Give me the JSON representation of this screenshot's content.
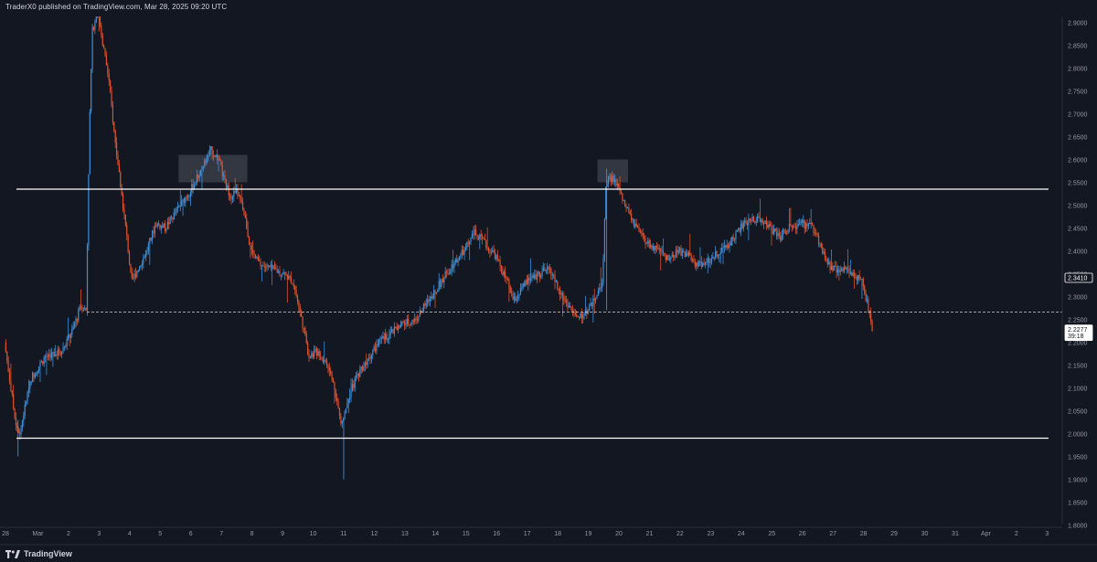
{
  "header": {
    "publish_line": "TraderX0 published on TradingView.com, Mar 28, 2025 09:20 UTC"
  },
  "footer": {
    "brand": "TradingView",
    "brand_icon": "tradingview-logo-icon"
  },
  "colors": {
    "background": "#131722",
    "bull": "#3d8fd6",
    "bear": "#e0522e",
    "axis_text": "#9598a1",
    "level_line": "#ffffff",
    "zone_fill": "#3a3d48",
    "price_label_bg": "#ffffff",
    "price_label_text": "#131722"
  },
  "chart_data": {
    "type": "candlestick",
    "title": "",
    "xlabel": "",
    "ylabel": "",
    "ylim": [
      1.8,
      2.92
    ],
    "grid": false,
    "y_ticks": [
      "2.9000",
      "2.8500",
      "2.8000",
      "2.7500",
      "2.7000",
      "2.6500",
      "2.6000",
      "2.5500",
      "2.5000",
      "2.4500",
      "2.4000",
      "2.3500",
      "2.3000",
      "2.2500",
      "2.2000",
      "2.1500",
      "2.1000",
      "2.0500",
      "2.0000",
      "1.9500",
      "1.9000",
      "1.8500",
      "1.8000"
    ],
    "x_ticks": [
      {
        "label": "28",
        "day": -0.06
      },
      {
        "label": "Mar",
        "day": 1
      },
      {
        "label": "2",
        "day": 2
      },
      {
        "label": "3",
        "day": 3
      },
      {
        "label": "4",
        "day": 4
      },
      {
        "label": "5",
        "day": 5
      },
      {
        "label": "6",
        "day": 6
      },
      {
        "label": "7",
        "day": 7
      },
      {
        "label": "8",
        "day": 8
      },
      {
        "label": "9",
        "day": 9
      },
      {
        "label": "10",
        "day": 10
      },
      {
        "label": "11",
        "day": 11
      },
      {
        "label": "12",
        "day": 12
      },
      {
        "label": "13",
        "day": 13
      },
      {
        "label": "14",
        "day": 14
      },
      {
        "label": "15",
        "day": 15
      },
      {
        "label": "16",
        "day": 16
      },
      {
        "label": "17",
        "day": 17
      },
      {
        "label": "18",
        "day": 18
      },
      {
        "label": "19",
        "day": 19
      },
      {
        "label": "20",
        "day": 20
      },
      {
        "label": "21",
        "day": 21
      },
      {
        "label": "22",
        "day": 22
      },
      {
        "label": "23",
        "day": 23
      },
      {
        "label": "24",
        "day": 24
      },
      {
        "label": "25",
        "day": 25
      },
      {
        "label": "26",
        "day": 26
      },
      {
        "label": "27",
        "day": 27
      },
      {
        "label": "28",
        "day": 28
      },
      {
        "label": "29",
        "day": 29
      },
      {
        "label": "30",
        "day": 30
      },
      {
        "label": "31",
        "day": 31
      },
      {
        "label": "Apr",
        "day": 32
      },
      {
        "label": "2",
        "day": 33
      },
      {
        "label": "3",
        "day": 34
      }
    ],
    "horizontal_levels": [
      {
        "price": 2.535,
        "style": "solid"
      },
      {
        "price": 1.99,
        "style": "solid"
      },
      {
        "price": 2.266,
        "style": "dashed"
      }
    ],
    "zones": [
      {
        "day_start": 5.6,
        "day_end": 7.85,
        "price_low": 2.55,
        "price_high": 2.61
      },
      {
        "day_start": 19.3,
        "day_end": 20.3,
        "price_low": 2.55,
        "price_high": 2.6
      }
    ],
    "price_labels": [
      {
        "price": 2.341,
        "text": "2.3410",
        "style": "outline"
      },
      {
        "price": 2.2277,
        "text": "2.2277",
        "subtext": "39:18",
        "style": "filled"
      }
    ],
    "anchors": [
      [
        -0.05,
        2.2
      ],
      [
        0.3,
        2.03
      ],
      [
        0.45,
        2.0
      ],
      [
        0.8,
        2.12
      ],
      [
        1.3,
        2.17
      ],
      [
        1.8,
        2.18
      ],
      [
        2.2,
        2.23
      ],
      [
        2.45,
        2.28
      ],
      [
        2.62,
        2.27
      ],
      [
        2.72,
        2.65
      ],
      [
        2.82,
        2.88
      ],
      [
        3.0,
        2.93
      ],
      [
        3.15,
        2.86
      ],
      [
        3.35,
        2.78
      ],
      [
        3.55,
        2.65
      ],
      [
        3.75,
        2.54
      ],
      [
        3.95,
        2.43
      ],
      [
        4.1,
        2.33
      ],
      [
        4.3,
        2.36
      ],
      [
        4.6,
        2.4
      ],
      [
        4.9,
        2.46
      ],
      [
        5.2,
        2.45
      ],
      [
        5.5,
        2.48
      ],
      [
        5.8,
        2.51
      ],
      [
        6.1,
        2.54
      ],
      [
        6.4,
        2.58
      ],
      [
        6.7,
        2.62
      ],
      [
        6.95,
        2.6
      ],
      [
        7.15,
        2.55
      ],
      [
        7.35,
        2.52
      ],
      [
        7.55,
        2.53
      ],
      [
        7.8,
        2.48
      ],
      [
        8.0,
        2.4
      ],
      [
        8.3,
        2.37
      ],
      [
        8.7,
        2.36
      ],
      [
        9.1,
        2.35
      ],
      [
        9.4,
        2.33
      ],
      [
        9.7,
        2.24
      ],
      [
        9.9,
        2.17
      ],
      [
        10.2,
        2.18
      ],
      [
        10.5,
        2.15
      ],
      [
        10.75,
        2.1
      ],
      [
        10.95,
        2.02
      ],
      [
        11.2,
        2.08
      ],
      [
        11.5,
        2.13
      ],
      [
        11.8,
        2.16
      ],
      [
        12.2,
        2.2
      ],
      [
        12.6,
        2.22
      ],
      [
        13.0,
        2.24
      ],
      [
        13.4,
        2.25
      ],
      [
        13.8,
        2.29
      ],
      [
        14.2,
        2.33
      ],
      [
        14.6,
        2.37
      ],
      [
        15.0,
        2.4
      ],
      [
        15.3,
        2.44
      ],
      [
        15.6,
        2.42
      ],
      [
        16.0,
        2.39
      ],
      [
        16.4,
        2.33
      ],
      [
        16.6,
        2.29
      ],
      [
        17.0,
        2.33
      ],
      [
        17.4,
        2.35
      ],
      [
        17.8,
        2.36
      ],
      [
        18.1,
        2.31
      ],
      [
        18.4,
        2.28
      ],
      [
        18.7,
        2.25
      ],
      [
        19.0,
        2.27
      ],
      [
        19.3,
        2.3
      ],
      [
        19.5,
        2.33
      ],
      [
        19.62,
        2.55
      ],
      [
        19.8,
        2.56
      ],
      [
        20.0,
        2.54
      ],
      [
        20.3,
        2.49
      ],
      [
        20.6,
        2.45
      ],
      [
        20.9,
        2.42
      ],
      [
        21.3,
        2.4
      ],
      [
        21.7,
        2.38
      ],
      [
        22.0,
        2.4
      ],
      [
        22.3,
        2.39
      ],
      [
        22.6,
        2.37
      ],
      [
        23.0,
        2.38
      ],
      [
        23.3,
        2.4
      ],
      [
        23.6,
        2.41
      ],
      [
        24.0,
        2.45
      ],
      [
        24.4,
        2.47
      ],
      [
        24.7,
        2.47
      ],
      [
        25.0,
        2.45
      ],
      [
        25.3,
        2.43
      ],
      [
        25.6,
        2.45
      ],
      [
        26.0,
        2.46
      ],
      [
        26.4,
        2.45
      ],
      [
        26.7,
        2.4
      ],
      [
        27.0,
        2.36
      ],
      [
        27.3,
        2.36
      ],
      [
        27.7,
        2.35
      ],
      [
        28.0,
        2.33
      ],
      [
        28.15,
        2.29
      ],
      [
        28.3,
        2.23
      ]
    ]
  }
}
